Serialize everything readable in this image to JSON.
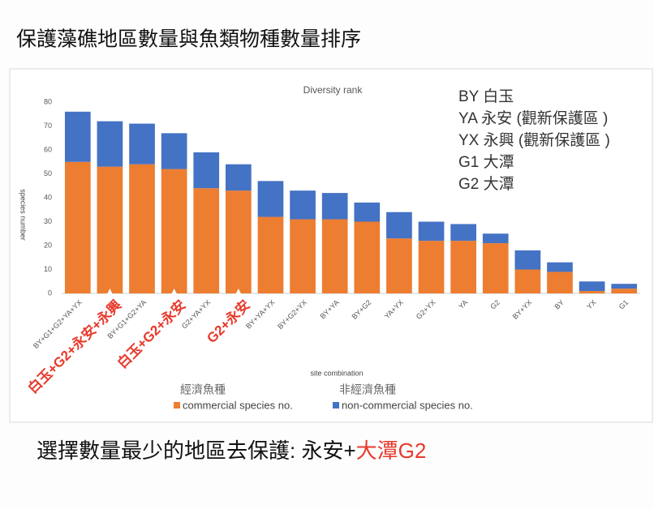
{
  "slide_title": "保護藻礁地區數量與魚類物種數量排序",
  "site_key": [
    "BY 白玉",
    "YA 永安 (觀新保護區 )",
    "YX 永興 (觀新保護區 )",
    "G1 大潭",
    "G2 大潭"
  ],
  "annotations": [
    "白玉+G2+永安+永興",
    "白玉+G2+永安",
    "G2+永安"
  ],
  "conclusion": [
    "選擇數量最少的地區去保護: 永安+",
    "大潭G2"
  ],
  "chart_data": {
    "type": "stacked_bar",
    "title": "Diversity rank",
    "xlabel": "site combination",
    "ylabel": "species number",
    "categories": [
      "BY+G1+G2+YA+YX",
      null,
      "BY+G1+G2+YA",
      null,
      "G2+YA+YX",
      null,
      "BY+YA+YX",
      "BY+G2+YX",
      "BY+YA",
      "BY+G2",
      "YA+YX",
      "G2+YX",
      "YA",
      "G2",
      "BY+YX",
      "BY",
      "YX",
      "G1"
    ],
    "series": [
      {
        "name": "commercial species no.",
        "legend_zh": "經濟魚種",
        "color": "#ed7d31",
        "values": [
          55,
          53,
          54,
          52,
          44,
          43,
          32,
          31,
          31,
          30,
          23,
          22,
          22,
          21,
          10,
          9,
          1,
          2
        ]
      },
      {
        "name": "non-commercial species no.",
        "legend_zh": "非經濟魚種",
        "color": "#4472c4",
        "values": [
          21,
          19,
          17,
          15,
          15,
          11,
          15,
          12,
          11,
          8,
          11,
          8,
          7,
          4,
          8,
          4,
          4,
          2
        ]
      }
    ],
    "ylim": [
      0,
      80
    ],
    "yticks": [
      0,
      10,
      20,
      30,
      40,
      50,
      60,
      70,
      80
    ],
    "grid": false
  }
}
